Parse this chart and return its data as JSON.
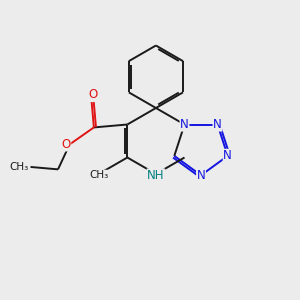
{
  "bg": "#ececec",
  "bc": "#1a1a1a",
  "Nc": "#1414e0",
  "Oc": "#e01414",
  "NHc": "#008080",
  "lw": 1.4,
  "dbo": 0.07,
  "figsize": [
    3.0,
    3.0
  ],
  "dpi": 100,
  "xlim": [
    0,
    10
  ],
  "ylim": [
    0,
    10
  ]
}
